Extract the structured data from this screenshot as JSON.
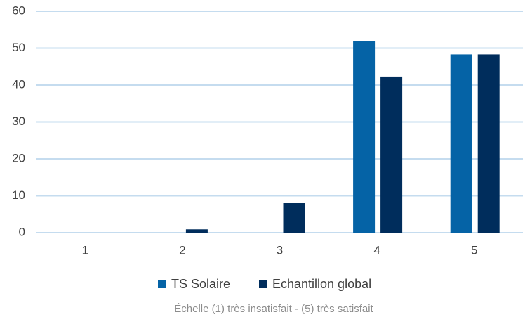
{
  "chart_data": {
    "type": "bar",
    "categories": [
      "1",
      "2",
      "3",
      "4",
      "5"
    ],
    "series": [
      {
        "name": "TS Solaire",
        "color": "#0563a6",
        "values": [
          0,
          0,
          0,
          52,
          48.3
        ]
      },
      {
        "name": "Echantillon global",
        "color": "#002d5c",
        "values": [
          0,
          0.9,
          8,
          42.3,
          48.3
        ]
      }
    ],
    "ylim": [
      0,
      60
    ],
    "yticks": [
      0,
      10,
      20,
      30,
      40,
      50,
      60
    ],
    "grid": true,
    "x_label": "Échelle (1) très insatisfait - (5) très satisfait",
    "legend": "bottom"
  }
}
